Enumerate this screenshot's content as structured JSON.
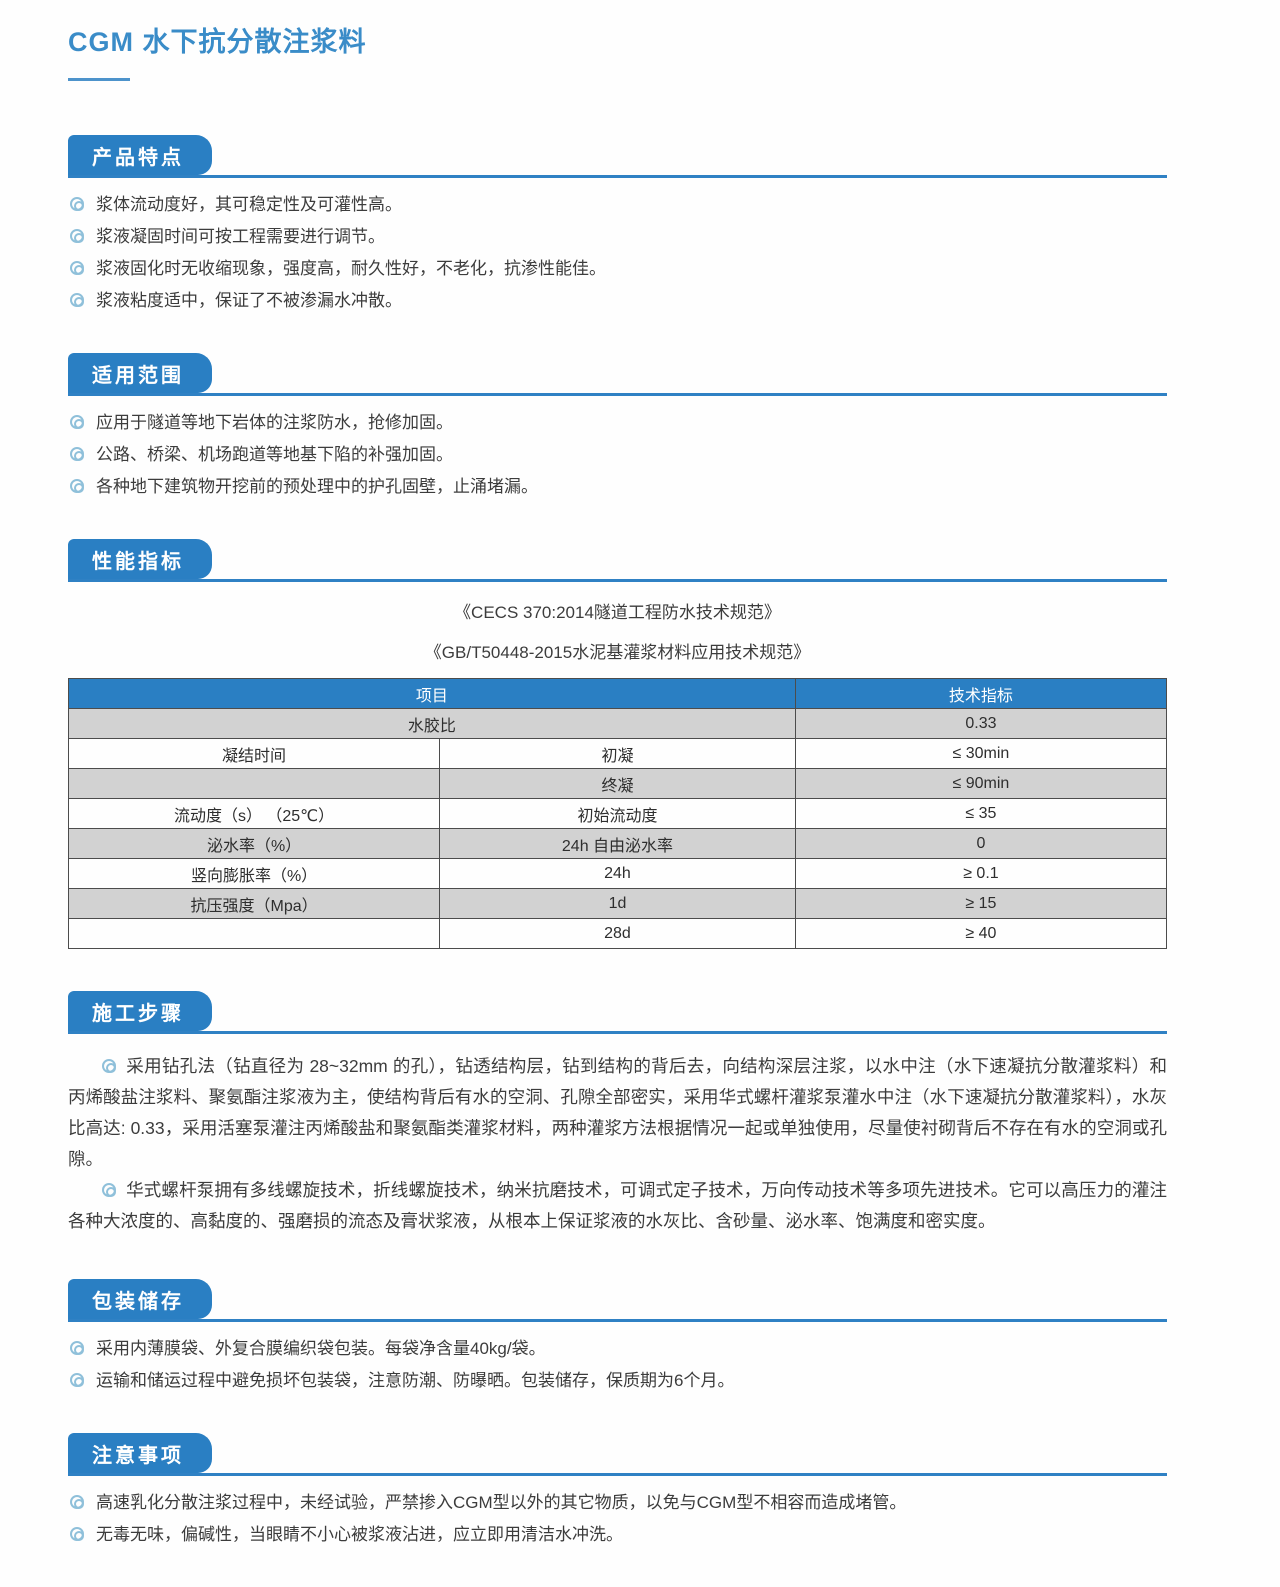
{
  "page": {
    "title": "CGM 水下抗分散注浆料"
  },
  "colors": {
    "accent_blue": "#2a7fc3",
    "title_blue": "#3a8cc8",
    "bullet_ring": "#8fc0da",
    "table_header_bg": "#2a7fc3",
    "table_shade_row": "#d2d2d2",
    "body_text": "#3c3c3c"
  },
  "sections": {
    "features": {
      "header": "产品特点",
      "items": [
        "浆体流动度好，其可稳定性及可灌性高。",
        "浆液凝固时间可按工程需要进行调节。",
        "浆液固化时无收缩现象，强度高，耐久性好，不老化，抗渗性能佳。",
        "浆液粘度适中，保证了不被渗漏水冲散。"
      ]
    },
    "scope": {
      "header": "适用范围",
      "items": [
        "应用于隧道等地下岩体的注浆防水，抢修加固。",
        "公路、桥梁、机场跑道等地基下陷的补强加固。",
        "各种地下建筑物开挖前的预处理中的护孔固壁，止涌堵漏。"
      ]
    },
    "performance": {
      "header": "性能指标",
      "standards": [
        "《CECS 370:2014隧道工程防水技术规范》",
        "《GB/T50448-2015水泥基灌浆材料应用技术规范》"
      ],
      "table": {
        "headers": [
          {
            "text": "项目",
            "colspan": 2
          },
          {
            "text": "技术指标",
            "colspan": 1
          }
        ],
        "rows": [
          {
            "shade": true,
            "cells": [
              {
                "text": "水胶比",
                "colspan": 2
              },
              {
                "text": "0.33"
              }
            ]
          },
          {
            "shade": false,
            "cells": [
              {
                "text": "凝结时间"
              },
              {
                "text": "初凝"
              },
              {
                "text": "≤ 30min"
              }
            ]
          },
          {
            "shade": true,
            "cells": [
              {
                "text": ""
              },
              {
                "text": "终凝"
              },
              {
                "text": "≤ 90min"
              }
            ]
          },
          {
            "shade": false,
            "cells": [
              {
                "text": "流动度（s） （25℃）"
              },
              {
                "text": "初始流动度"
              },
              {
                "text": "≤ 35"
              }
            ]
          },
          {
            "shade": true,
            "cells": [
              {
                "text": "泌水率（%）"
              },
              {
                "text": "24h 自由泌水率"
              },
              {
                "text": "0"
              }
            ]
          },
          {
            "shade": false,
            "cells": [
              {
                "text": "竖向膨胀率（%）"
              },
              {
                "text": "24h"
              },
              {
                "text": "≥ 0.1"
              }
            ]
          },
          {
            "shade": true,
            "cells": [
              {
                "text": "抗压强度（Mpa）"
              },
              {
                "text": "1d"
              },
              {
                "text": "≥ 15"
              }
            ]
          },
          {
            "shade": false,
            "cells": [
              {
                "text": ""
              },
              {
                "text": "28d"
              },
              {
                "text": "≥ 40"
              }
            ]
          }
        ]
      }
    },
    "construction": {
      "header": "施工步骤",
      "paragraphs": [
        "采用钻孔法（钻直径为 28~32mm 的孔），钻透结构层，钻到结构的背后去，向结构深层注浆，以水中注（水下速凝抗分散灌浆料）和丙烯酸盐注浆料、聚氨酯注浆液为主，使结构背后有水的空洞、孔隙全部密实，采用华式螺杆灌浆泵灌水中注（水下速凝抗分散灌浆料），水灰比高达: 0.33，采用活塞泵灌注丙烯酸盐和聚氨酯类灌浆材料，两种灌浆方法根据情况一起或单独使用，尽量使衬砌背后不存在有水的空洞或孔隙。",
        "华式螺杆泵拥有多线螺旋技术，折线螺旋技术，纳米抗磨技术，可调式定子技术，万向传动技术等多项先进技术。它可以高压力的灌注各种大浓度的、高黏度的、强磨损的流态及膏状浆液，从根本上保证浆液的水灰比、含砂量、泌水率、饱满度和密实度。"
      ]
    },
    "packaging": {
      "header": "包装储存",
      "items": [
        "采用内薄膜袋、外复合膜编织袋包装。每袋净含量40kg/袋。",
        "运输和储运过程中避免损坏包装袋，注意防潮、防曝晒。包装储存，保质期为6个月。"
      ]
    },
    "notes": {
      "header": "注意事项",
      "items": [
        "高速乳化分散注浆过程中，未经试验，严禁掺入CGM型以外的其它物质，以免与CGM型不相容而造成堵管。",
        "无毒无味，偏碱性，当眼睛不小心被浆液沾进，应立即用清洁水冲洗。"
      ]
    }
  }
}
